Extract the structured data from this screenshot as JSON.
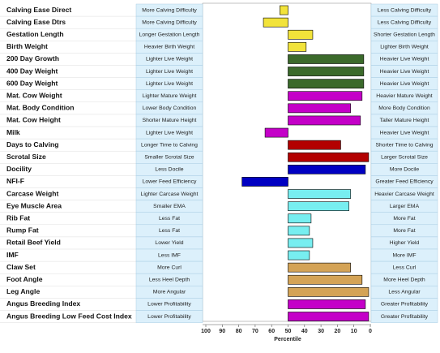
{
  "chart_data": {
    "type": "bar",
    "orientation": "horizontal",
    "x_label": "Percentile",
    "xlim": [
      100,
      0
    ],
    "xticks": [
      100,
      90,
      80,
      70,
      60,
      50,
      40,
      30,
      20,
      10,
      0
    ],
    "categories": [
      "Calving Ease Direct",
      "Calving Ease Dtrs",
      "Gestation Length",
      "Birth Weight",
      "200 Day Growth",
      "400 Day Weight",
      "600 Day Weight",
      "Mat. Cow Weight",
      "Mat. Body Condition",
      "Mat. Cow Height",
      "Milk",
      "Days to Calving",
      "Scrotal Size",
      "Docility",
      "NFI-F",
      "Carcase Weight",
      "Eye Muscle Area",
      "Rib Fat",
      "Rump Fat",
      "Retail Beef Yield",
      "IMF",
      "Claw Set",
      "Foot Angle",
      "Leg Angle",
      "Angus Breeding Index",
      "Angus Breeding Low Feed Cost Index"
    ],
    "left_labels": [
      "More Calving Difficulty",
      "More Calving Difficulty",
      "Longer Gestation Length",
      "Heavier Birth Weight",
      "Lighter Live Weight",
      "Lighter Live Weight",
      "Lighter Live Weight",
      "Lighter Mature Weight",
      "Lower Body Condition",
      "Shorter Mature Height",
      "Lighter Live Weight",
      "Longer Time to Calving",
      "Smaller Scrotal Size",
      "Less Docile",
      "Lower Feed Efficiency",
      "Lighter Carcase Weight",
      "Smaller EMA",
      "Less Fat",
      "Less Fat",
      "Lower Yield",
      "Less IMF",
      "More Curl",
      "Less Heel Depth",
      "More Angular",
      "Lower Profitability",
      "Lower Profitability"
    ],
    "right_labels": [
      "Less Calving Difficulty",
      "Less Calving Difficulty",
      "Shorter Gestation Length",
      "Lighter Birth Weight",
      "Heavier Live Weight",
      "Heavier Live Weight",
      "Heavier Live Weight",
      "Heavier Mature Weight",
      "More Body Condition",
      "Taller Mature Height",
      "Heavier Live Weight",
      "Shorter Time to Calving",
      "Larger Scrotal Size",
      "More Docile",
      "Greater Feed Efficiency",
      "Heavier Carcase Weight",
      "Larger EMA",
      "More Fat",
      "More Fat",
      "Higher Yield",
      "More IMF",
      "Less Curl",
      "More Heel Depth",
      "Less Angular",
      "Greater Profitability",
      "Greater Profitability"
    ],
    "values": [
      55,
      65,
      35,
      39,
      4,
      4,
      4,
      5,
      12,
      6,
      64,
      18,
      1,
      3,
      78,
      12,
      13,
      36,
      37,
      35,
      37,
      12,
      5,
      1,
      3,
      1
    ],
    "colors": [
      "#f2e33a",
      "#f2e33a",
      "#f2e33a",
      "#f2e33a",
      "#3b6a2b",
      "#3b6a2b",
      "#3b6a2b",
      "#c400c8",
      "#c400c8",
      "#c400c8",
      "#c400c8",
      "#b30000",
      "#b30000",
      "#0000c2",
      "#0000c2",
      "#77eef0",
      "#77eef0",
      "#77eef0",
      "#77eef0",
      "#77eef0",
      "#77eef0",
      "#d4a356",
      "#d4a356",
      "#d4a356",
      "#c400c8",
      "#c400c8"
    ]
  }
}
